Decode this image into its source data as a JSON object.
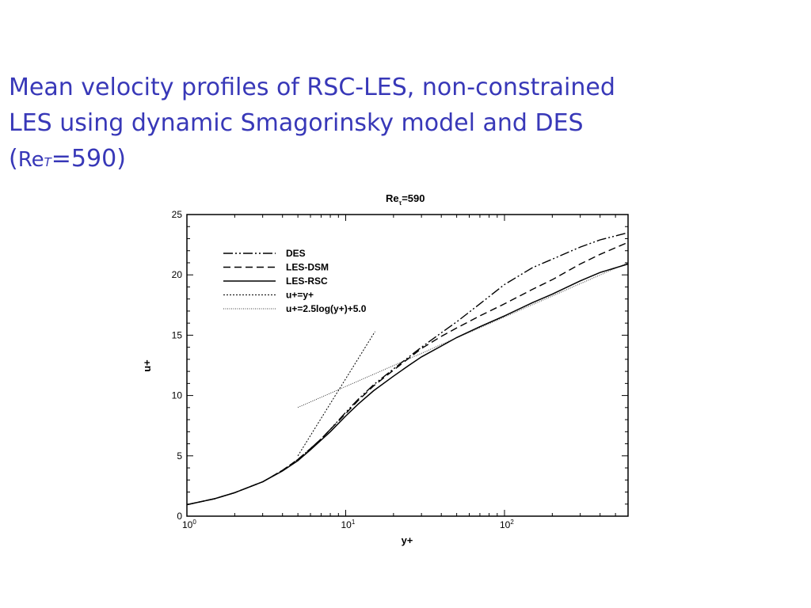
{
  "slide": {
    "title_line1": "Mean velocity profiles of RSC-LES, non-constrained",
    "title_line2": "LES using dynamic Smagorinsky model and DES",
    "title_line3_open": "(",
    "title_line3_re": "Re",
    "title_line3_sub": "T",
    "title_line3_rest": "=590)"
  },
  "chart_data": {
    "type": "line",
    "title_main": "Re",
    "title_sub": "τ",
    "title_rest": "=590",
    "xlabel": "y+",
    "ylabel": "u+",
    "xscale": "log",
    "xlim": [
      1,
      600
    ],
    "ylim": [
      0,
      25
    ],
    "yticks": [
      0,
      5,
      10,
      15,
      20,
      25
    ],
    "yticklabels": [
      "0",
      "5",
      "10",
      "15",
      "20",
      "25"
    ],
    "xticks": [
      1,
      10,
      100
    ],
    "xtick_base": "10",
    "xtick_exponents": [
      "0",
      "1",
      "2"
    ],
    "grid": false,
    "legend_position": "top-left",
    "series": [
      {
        "name": "DES",
        "x": [
          1,
          1.5,
          2,
          3,
          4,
          5,
          6,
          7,
          8,
          10,
          12,
          15,
          20,
          25,
          30,
          40,
          50,
          70,
          100,
          150,
          200,
          300,
          400,
          600
        ],
        "y": [
          0.95,
          1.45,
          1.95,
          2.85,
          3.8,
          4.7,
          5.6,
          6.4,
          7.2,
          8.6,
          9.7,
          10.9,
          12.2,
          13.2,
          14,
          15.2,
          16.1,
          17.6,
          19.2,
          20.6,
          21.3,
          22.3,
          22.9,
          23.5
        ],
        "style": "dashdotdot"
      },
      {
        "name": "LES-DSM",
        "x": [
          1,
          1.5,
          2,
          3,
          4,
          5,
          6,
          7,
          8,
          10,
          12,
          15,
          20,
          25,
          30,
          40,
          50,
          70,
          100,
          150,
          200,
          300,
          400,
          600
        ],
        "y": [
          0.95,
          1.45,
          1.95,
          2.85,
          3.8,
          4.7,
          5.6,
          6.4,
          7.2,
          8.5,
          9.6,
          10.8,
          12.1,
          13.1,
          13.9,
          14.9,
          15.6,
          16.6,
          17.6,
          18.8,
          19.6,
          20.9,
          21.7,
          22.7
        ],
        "style": "dashed"
      },
      {
        "name": "LES-RSC",
        "x": [
          1,
          1.5,
          2,
          3,
          4,
          5,
          6,
          7,
          8,
          10,
          12,
          15,
          20,
          25,
          30,
          40,
          50,
          70,
          100,
          150,
          200,
          300,
          400,
          600
        ],
        "y": [
          0.95,
          1.45,
          1.95,
          2.85,
          3.75,
          4.6,
          5.5,
          6.3,
          7,
          8.3,
          9.3,
          10.4,
          11.6,
          12.5,
          13.2,
          14.1,
          14.8,
          15.7,
          16.6,
          17.7,
          18.4,
          19.5,
          20.2,
          20.9
        ],
        "style": "solid"
      },
      {
        "name": "u+=y+",
        "x": [
          5,
          15.3
        ],
        "y": [
          5,
          15.3
        ],
        "style": "dotted"
      },
      {
        "name": "u+=2.5log(y+)+5.0",
        "x": [
          5,
          600
        ],
        "y": [
          9.02,
          21
        ],
        "style": "dotted-fine"
      }
    ]
  }
}
